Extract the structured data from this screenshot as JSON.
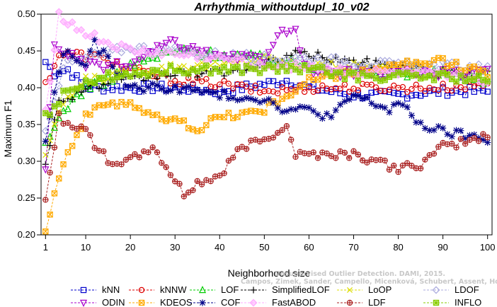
{
  "chart_data": {
    "type": "line",
    "title": "Arrhythmia_withoutdupl_10_v02",
    "xlabel": "Neighborhood size",
    "ylabel": "Maximum F1",
    "xlim": [
      0,
      101
    ],
    "ylim": [
      0.2,
      0.5
    ],
    "xticks": [
      1,
      10,
      20,
      30,
      40,
      50,
      60,
      70,
      80,
      90,
      100
    ],
    "yticks": [
      "0.20",
      "0.25",
      "0.30",
      "0.35",
      "0.40",
      "0.45",
      "0.50"
    ],
    "legend_position": "bottom",
    "watermark": [
      "Unsupervised Outlier Detection. DAMI, 2015.",
      "Campos, Zimek, Sander, Campello, Micenková, Schubert, Assent, Houle"
    ],
    "series": [
      {
        "name": "kNN",
        "color": "#0000cc",
        "marker": "square",
        "line": "dash",
        "anchors": [
          [
            1,
            0.435
          ],
          [
            3,
            0.42
          ],
          [
            6,
            0.425
          ],
          [
            10,
            0.4
          ],
          [
            20,
            0.4
          ],
          [
            30,
            0.4
          ],
          [
            40,
            0.395
          ],
          [
            55,
            0.41
          ],
          [
            60,
            0.4
          ],
          [
            70,
            0.39
          ],
          [
            80,
            0.39
          ],
          [
            90,
            0.395
          ],
          [
            100,
            0.395
          ]
        ]
      },
      {
        "name": "kNNW",
        "color": "#dd0000",
        "marker": "circle",
        "line": "dash",
        "anchors": [
          [
            1,
            0.405
          ],
          [
            4,
            0.445
          ],
          [
            8,
            0.445
          ],
          [
            14,
            0.44
          ],
          [
            20,
            0.425
          ],
          [
            30,
            0.41
          ],
          [
            40,
            0.405
          ],
          [
            50,
            0.395
          ],
          [
            60,
            0.4
          ],
          [
            70,
            0.4
          ],
          [
            80,
            0.4
          ],
          [
            90,
            0.4
          ],
          [
            100,
            0.405
          ]
        ]
      },
      {
        "name": "LOF",
        "color": "#00cc00",
        "marker": "triangle",
        "line": "dash",
        "anchors": [
          [
            1,
            0.32
          ],
          [
            5,
            0.37
          ],
          [
            10,
            0.4
          ],
          [
            15,
            0.41
          ],
          [
            20,
            0.43
          ],
          [
            25,
            0.44
          ],
          [
            30,
            0.45
          ],
          [
            40,
            0.445
          ],
          [
            50,
            0.44
          ],
          [
            60,
            0.43
          ],
          [
            70,
            0.42
          ],
          [
            80,
            0.42
          ],
          [
            90,
            0.42
          ],
          [
            100,
            0.41
          ]
        ]
      },
      {
        "name": "SimplifiedLOF",
        "color": "#000000",
        "marker": "plus",
        "line": "dash",
        "anchors": [
          [
            1,
            0.3
          ],
          [
            4,
            0.38
          ],
          [
            10,
            0.4
          ],
          [
            20,
            0.41
          ],
          [
            30,
            0.42
          ],
          [
            40,
            0.42
          ],
          [
            50,
            0.43
          ],
          [
            55,
            0.445
          ],
          [
            60,
            0.445
          ],
          [
            70,
            0.435
          ],
          [
            80,
            0.43
          ],
          [
            90,
            0.42
          ],
          [
            100,
            0.42
          ]
        ]
      },
      {
        "name": "LoOP",
        "color": "#dddd00",
        "marker": "cross",
        "line": "dash",
        "anchors": [
          [
            1,
            0.31
          ],
          [
            5,
            0.38
          ],
          [
            10,
            0.41
          ],
          [
            20,
            0.42
          ],
          [
            30,
            0.43
          ],
          [
            40,
            0.43
          ],
          [
            50,
            0.44
          ],
          [
            60,
            0.43
          ],
          [
            70,
            0.43
          ],
          [
            80,
            0.425
          ],
          [
            90,
            0.42
          ],
          [
            100,
            0.42
          ]
        ]
      },
      {
        "name": "LDOF",
        "color": "#aaaadd",
        "marker": "diamond",
        "line": "dash",
        "anchors": [
          [
            1,
            0.34
          ],
          [
            5,
            0.43
          ],
          [
            10,
            0.44
          ],
          [
            20,
            0.455
          ],
          [
            30,
            0.45
          ],
          [
            40,
            0.445
          ],
          [
            50,
            0.44
          ],
          [
            60,
            0.44
          ],
          [
            70,
            0.435
          ],
          [
            80,
            0.43
          ],
          [
            90,
            0.43
          ],
          [
            100,
            0.425
          ]
        ]
      },
      {
        "name": "ODIN",
        "color": "#aa00cc",
        "marker": "triangle-down",
        "line": "dash",
        "anchors": [
          [
            1,
            0.285
          ],
          [
            3,
            0.46
          ],
          [
            5,
            0.45
          ],
          [
            10,
            0.43
          ],
          [
            20,
            0.43
          ],
          [
            28,
            0.46
          ],
          [
            30,
            0.46
          ],
          [
            40,
            0.44
          ],
          [
            50,
            0.44
          ],
          [
            53,
            0.475
          ],
          [
            57,
            0.475
          ],
          [
            60,
            0.42
          ],
          [
            70,
            0.42
          ],
          [
            80,
            0.42
          ],
          [
            90,
            0.42
          ],
          [
            100,
            0.42
          ]
        ]
      },
      {
        "name": "KDEOS",
        "color": "#ffaa00",
        "marker": "square-x",
        "line": "dash",
        "anchors": [
          [
            1,
            0.21
          ],
          [
            5,
            0.3
          ],
          [
            10,
            0.36
          ],
          [
            15,
            0.38
          ],
          [
            20,
            0.38
          ],
          [
            25,
            0.36
          ],
          [
            30,
            0.355
          ],
          [
            35,
            0.345
          ],
          [
            40,
            0.36
          ],
          [
            50,
            0.37
          ],
          [
            55,
            0.39
          ],
          [
            60,
            0.41
          ],
          [
            70,
            0.42
          ],
          [
            80,
            0.43
          ],
          [
            90,
            0.435
          ],
          [
            100,
            0.42
          ]
        ]
      },
      {
        "name": "COF",
        "color": "#000088",
        "marker": "star",
        "line": "dash",
        "anchors": [
          [
            1,
            0.33
          ],
          [
            5,
            0.45
          ],
          [
            10,
            0.43
          ],
          [
            12,
            0.46
          ],
          [
            20,
            0.4
          ],
          [
            30,
            0.4
          ],
          [
            40,
            0.39
          ],
          [
            50,
            0.385
          ],
          [
            55,
            0.37
          ],
          [
            60,
            0.37
          ],
          [
            65,
            0.36
          ],
          [
            70,
            0.39
          ],
          [
            78,
            0.37
          ],
          [
            80,
            0.38
          ],
          [
            85,
            0.35
          ],
          [
            90,
            0.34
          ],
          [
            100,
            0.33
          ]
        ]
      },
      {
        "name": "FastABOD",
        "color": "#ffaaff",
        "marker": "diamond-filled",
        "line": "dash",
        "anchors": [
          [
            1,
            0.37
          ],
          [
            4,
            0.5
          ],
          [
            8,
            0.48
          ],
          [
            15,
            0.46
          ],
          [
            20,
            0.45
          ],
          [
            30,
            0.445
          ],
          [
            40,
            0.44
          ],
          [
            50,
            0.43
          ],
          [
            60,
            0.43
          ],
          [
            70,
            0.42
          ],
          [
            80,
            0.42
          ],
          [
            90,
            0.415
          ],
          [
            100,
            0.41
          ]
        ]
      },
      {
        "name": "LDF",
        "color": "#aa2222",
        "marker": "circle-plus",
        "line": "dash",
        "anchors": [
          [
            1,
            0.245
          ],
          [
            4,
            0.36
          ],
          [
            10,
            0.34
          ],
          [
            15,
            0.3
          ],
          [
            20,
            0.3
          ],
          [
            25,
            0.32
          ],
          [
            32,
            0.255
          ],
          [
            35,
            0.27
          ],
          [
            40,
            0.28
          ],
          [
            45,
            0.32
          ],
          [
            50,
            0.33
          ],
          [
            55,
            0.35
          ],
          [
            57,
            0.31
          ],
          [
            60,
            0.31
          ],
          [
            70,
            0.31
          ],
          [
            80,
            0.29
          ],
          [
            85,
            0.295
          ],
          [
            90,
            0.32
          ],
          [
            100,
            0.335
          ]
        ]
      },
      {
        "name": "INFLO",
        "color": "#88cc00",
        "marker": "square-cross",
        "line": "dash",
        "anchors": [
          [
            1,
            0.36
          ],
          [
            5,
            0.39
          ],
          [
            10,
            0.41
          ],
          [
            20,
            0.42
          ],
          [
            30,
            0.425
          ],
          [
            40,
            0.425
          ],
          [
            50,
            0.425
          ],
          [
            60,
            0.425
          ],
          [
            70,
            0.415
          ],
          [
            80,
            0.415
          ],
          [
            90,
            0.415
          ],
          [
            100,
            0.41
          ]
        ]
      }
    ]
  }
}
